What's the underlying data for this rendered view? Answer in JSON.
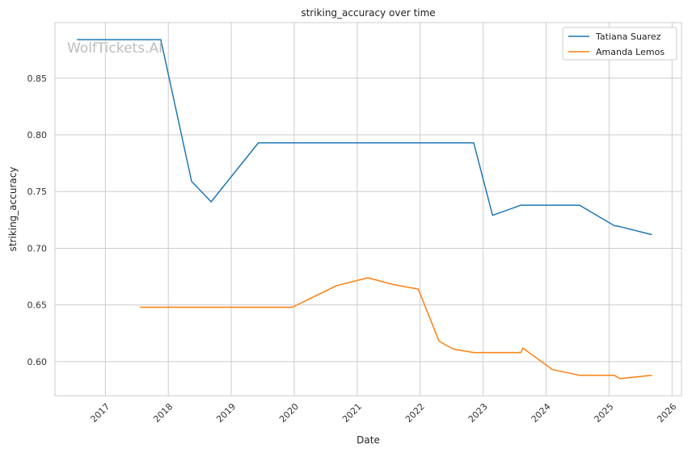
{
  "chart_data": {
    "type": "line",
    "title": "striking_accuracy over time",
    "xlabel": "Date",
    "ylabel": "striking_accuracy",
    "watermark": "WolfTickets.AI",
    "legend_position": "top-right",
    "grid": true,
    "xlim": [
      2016.2,
      2026.15
    ],
    "ylim": [
      0.57,
      0.899
    ],
    "x_ticks": [
      2017,
      2018,
      2019,
      2020,
      2021,
      2022,
      2023,
      2024,
      2025,
      2026
    ],
    "x_tick_labels": [
      "2017",
      "2018",
      "2019",
      "2020",
      "2021",
      "2022",
      "2023",
      "2024",
      "2025",
      "2026"
    ],
    "y_ticks": [
      0.6,
      0.65,
      0.7,
      0.75,
      0.8,
      0.85
    ],
    "y_tick_labels": [
      "0.60",
      "0.65",
      "0.70",
      "0.75",
      "0.80",
      "0.85"
    ],
    "series": [
      {
        "name": "Tatiana Suarez",
        "color": "#1f77b4",
        "x": [
          2016.55,
          2017.88,
          2018.37,
          2018.68,
          2019.43,
          2022.85,
          2023.15,
          2023.6,
          2024.53,
          2025.08,
          2025.18,
          2025.68
        ],
        "y": [
          0.884,
          0.884,
          0.759,
          0.741,
          0.793,
          0.793,
          0.729,
          0.738,
          0.738,
          0.72,
          0.719,
          0.712
        ]
      },
      {
        "name": "Amanda Lemos",
        "color": "#ff7f0e",
        "x": [
          2017.55,
          2019.97,
          2020.67,
          2021.17,
          2021.57,
          2021.97,
          2022.3,
          2022.53,
          2022.85,
          2023.6,
          2023.63,
          2024.1,
          2024.53,
          2025.08,
          2025.17,
          2025.68
        ],
        "y": [
          0.648,
          0.648,
          0.667,
          0.674,
          0.668,
          0.664,
          0.618,
          0.611,
          0.608,
          0.608,
          0.612,
          0.593,
          0.588,
          0.588,
          0.585,
          0.588
        ]
      }
    ]
  }
}
